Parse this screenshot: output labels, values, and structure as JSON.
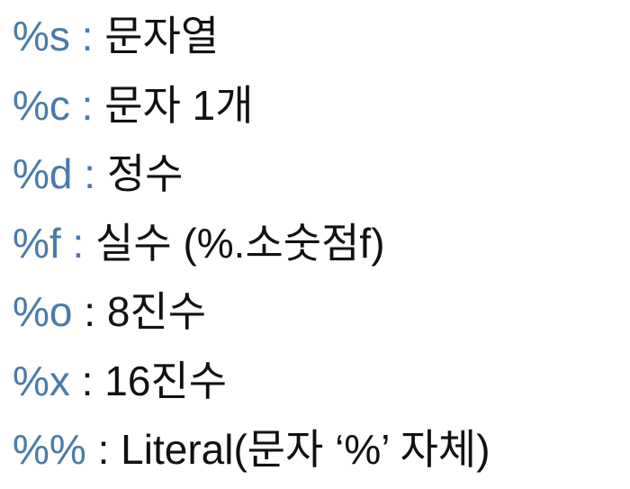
{
  "rows": [
    {
      "spec": "%s",
      "sep": " : ",
      "desc": "문자열"
    },
    {
      "spec": "%c",
      "sep": " : ",
      "desc": "문자 1개"
    },
    {
      "spec": "%d",
      "sep": " : ",
      "desc": "정수"
    },
    {
      "spec": "%f",
      "sep": " : ",
      "desc": "실수 (%.소숫점f)"
    },
    {
      "spec": "%o",
      "sep": " : ",
      "desc": "8진수"
    },
    {
      "spec": "%x",
      "sep": " : ",
      "desc": "16진수"
    },
    {
      "spec": "%%",
      "sep": " : ",
      "desc": "Literal(문자 ‘%’ 자체)"
    }
  ],
  "colors": {
    "specifier": "#4a7aaa",
    "text": "#111111",
    "background": "#ffffff"
  }
}
